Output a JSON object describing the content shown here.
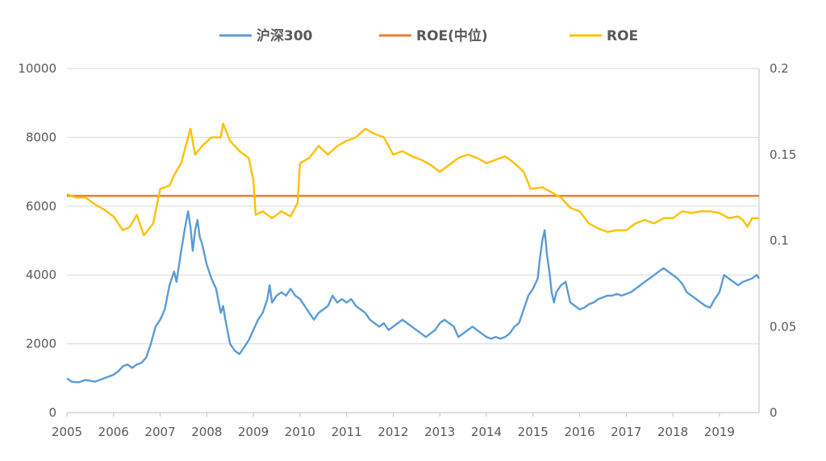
{
  "chart_data": {
    "type": "line",
    "legend": {
      "placement": "top-center",
      "entries": [
        {
          "name": "沪深300",
          "color": "#5B9BD5"
        },
        {
          "name": "ROE(中位)",
          "color": "#ED7D31"
        },
        {
          "name": "ROE",
          "color": "#FFC000"
        }
      ]
    },
    "x_axis": {
      "ticks": [
        "2005",
        "2006",
        "2007",
        "2008",
        "2009",
        "2010",
        "2011",
        "2012",
        "2013",
        "2014",
        "2015",
        "2016",
        "2017",
        "2018",
        "2019"
      ],
      "range": [
        2005,
        2019.85
      ]
    },
    "y_left": {
      "ticks": [
        "0",
        "2000",
        "4000",
        "6000",
        "8000",
        "10000"
      ],
      "range": [
        0,
        10000
      ]
    },
    "y_right": {
      "ticks": [
        "0",
        "0.05",
        "0.1",
        "0.15",
        "0.2"
      ],
      "range": [
        0,
        0.2
      ]
    },
    "grid": true,
    "series": [
      {
        "name": "沪深300",
        "axis": "left",
        "color": "#5B9BD5",
        "points": [
          [
            2005.0,
            1000
          ],
          [
            2005.1,
            900
          ],
          [
            2005.25,
            880
          ],
          [
            2005.4,
            950
          ],
          [
            2005.6,
            900
          ],
          [
            2005.8,
            1000
          ],
          [
            2006.0,
            1100
          ],
          [
            2006.1,
            1200
          ],
          [
            2006.2,
            1350
          ],
          [
            2006.3,
            1400
          ],
          [
            2006.4,
            1300
          ],
          [
            2006.5,
            1400
          ],
          [
            2006.6,
            1450
          ],
          [
            2006.7,
            1600
          ],
          [
            2006.8,
            2000
          ],
          [
            2006.9,
            2500
          ],
          [
            2007.0,
            2700
          ],
          [
            2007.1,
            3000
          ],
          [
            2007.2,
            3700
          ],
          [
            2007.3,
            4100
          ],
          [
            2007.35,
            3800
          ],
          [
            2007.45,
            4700
          ],
          [
            2007.55,
            5500
          ],
          [
            2007.6,
            5850
          ],
          [
            2007.65,
            5400
          ],
          [
            2007.7,
            4700
          ],
          [
            2007.75,
            5300
          ],
          [
            2007.8,
            5600
          ],
          [
            2007.85,
            5100
          ],
          [
            2007.9,
            4900
          ],
          [
            2008.0,
            4300
          ],
          [
            2008.1,
            3900
          ],
          [
            2008.2,
            3600
          ],
          [
            2008.3,
            2900
          ],
          [
            2008.35,
            3100
          ],
          [
            2008.4,
            2700
          ],
          [
            2008.5,
            2000
          ],
          [
            2008.6,
            1800
          ],
          [
            2008.7,
            1700
          ],
          [
            2008.8,
            1900
          ],
          [
            2008.9,
            2100
          ],
          [
            2009.0,
            2400
          ],
          [
            2009.1,
            2700
          ],
          [
            2009.2,
            2900
          ],
          [
            2009.3,
            3300
          ],
          [
            2009.35,
            3700
          ],
          [
            2009.4,
            3200
          ],
          [
            2009.5,
            3400
          ],
          [
            2009.6,
            3500
          ],
          [
            2009.7,
            3400
          ],
          [
            2009.8,
            3600
          ],
          [
            2009.9,
            3400
          ],
          [
            2010.0,
            3300
          ],
          [
            2010.1,
            3100
          ],
          [
            2010.2,
            2900
          ],
          [
            2010.3,
            2700
          ],
          [
            2010.4,
            2900
          ],
          [
            2010.5,
            3000
          ],
          [
            2010.6,
            3100
          ],
          [
            2010.7,
            3400
          ],
          [
            2010.8,
            3200
          ],
          [
            2010.9,
            3300
          ],
          [
            2011.0,
            3200
          ],
          [
            2011.1,
            3300
          ],
          [
            2011.2,
            3100
          ],
          [
            2011.3,
            3000
          ],
          [
            2011.4,
            2900
          ],
          [
            2011.5,
            2700
          ],
          [
            2011.6,
            2600
          ],
          [
            2011.7,
            2500
          ],
          [
            2011.8,
            2600
          ],
          [
            2011.9,
            2400
          ],
          [
            2012.0,
            2500
          ],
          [
            2012.1,
            2600
          ],
          [
            2012.2,
            2700
          ],
          [
            2012.3,
            2600
          ],
          [
            2012.4,
            2500
          ],
          [
            2012.5,
            2400
          ],
          [
            2012.6,
            2300
          ],
          [
            2012.7,
            2200
          ],
          [
            2012.8,
            2300
          ],
          [
            2012.9,
            2400
          ],
          [
            2013.0,
            2600
          ],
          [
            2013.1,
            2700
          ],
          [
            2013.2,
            2600
          ],
          [
            2013.3,
            2500
          ],
          [
            2013.4,
            2200
          ],
          [
            2013.5,
            2300
          ],
          [
            2013.6,
            2400
          ],
          [
            2013.7,
            2500
          ],
          [
            2013.8,
            2400
          ],
          [
            2013.9,
            2300
          ],
          [
            2014.0,
            2200
          ],
          [
            2014.1,
            2150
          ],
          [
            2014.2,
            2200
          ],
          [
            2014.3,
            2150
          ],
          [
            2014.4,
            2200
          ],
          [
            2014.5,
            2300
          ],
          [
            2014.6,
            2500
          ],
          [
            2014.7,
            2600
          ],
          [
            2014.8,
            3000
          ],
          [
            2014.9,
            3400
          ],
          [
            2015.0,
            3600
          ],
          [
            2015.1,
            3900
          ],
          [
            2015.15,
            4500
          ],
          [
            2015.2,
            5000
          ],
          [
            2015.25,
            5300
          ],
          [
            2015.3,
            4600
          ],
          [
            2015.35,
            4100
          ],
          [
            2015.4,
            3500
          ],
          [
            2015.45,
            3200
          ],
          [
            2015.5,
            3500
          ],
          [
            2015.6,
            3700
          ],
          [
            2015.7,
            3800
          ],
          [
            2015.8,
            3200
          ],
          [
            2015.9,
            3100
          ],
          [
            2016.0,
            3000
          ],
          [
            2016.1,
            3050
          ],
          [
            2016.2,
            3150
          ],
          [
            2016.3,
            3200
          ],
          [
            2016.4,
            3300
          ],
          [
            2016.5,
            3350
          ],
          [
            2016.6,
            3400
          ],
          [
            2016.7,
            3400
          ],
          [
            2016.8,
            3450
          ],
          [
            2016.9,
            3400
          ],
          [
            2017.0,
            3450
          ],
          [
            2017.1,
            3500
          ],
          [
            2017.2,
            3600
          ],
          [
            2017.3,
            3700
          ],
          [
            2017.4,
            3800
          ],
          [
            2017.5,
            3900
          ],
          [
            2017.6,
            4000
          ],
          [
            2017.7,
            4100
          ],
          [
            2017.8,
            4200
          ],
          [
            2017.9,
            4100
          ],
          [
            2018.0,
            4000
          ],
          [
            2018.1,
            3900
          ],
          [
            2018.2,
            3750
          ],
          [
            2018.3,
            3500
          ],
          [
            2018.4,
            3400
          ],
          [
            2018.5,
            3300
          ],
          [
            2018.6,
            3200
          ],
          [
            2018.7,
            3100
          ],
          [
            2018.8,
            3050
          ],
          [
            2018.9,
            3300
          ],
          [
            2019.0,
            3500
          ],
          [
            2019.1,
            4000
          ],
          [
            2019.2,
            3900
          ],
          [
            2019.3,
            3800
          ],
          [
            2019.4,
            3700
          ],
          [
            2019.5,
            3800
          ],
          [
            2019.6,
            3850
          ],
          [
            2019.7,
            3900
          ],
          [
            2019.8,
            4000
          ],
          [
            2019.85,
            3900
          ]
        ]
      },
      {
        "name": "ROE(中位)",
        "axis": "right",
        "color": "#ED7D31",
        "points": [
          [
            2005.0,
            0.126
          ],
          [
            2019.85,
            0.126
          ]
        ]
      },
      {
        "name": "ROE",
        "axis": "right",
        "color": "#FFC000",
        "points": [
          [
            2005.0,
            0.127
          ],
          [
            2005.2,
            0.125
          ],
          [
            2005.4,
            0.125
          ],
          [
            2005.6,
            0.121
          ],
          [
            2005.8,
            0.118
          ],
          [
            2006.0,
            0.114
          ],
          [
            2006.2,
            0.106
          ],
          [
            2006.35,
            0.108
          ],
          [
            2006.5,
            0.115
          ],
          [
            2006.65,
            0.103
          ],
          [
            2006.85,
            0.11
          ],
          [
            2007.0,
            0.13
          ],
          [
            2007.2,
            0.132
          ],
          [
            2007.3,
            0.138
          ],
          [
            2007.45,
            0.145
          ],
          [
            2007.55,
            0.155
          ],
          [
            2007.65,
            0.165
          ],
          [
            2007.75,
            0.15
          ],
          [
            2007.9,
            0.155
          ],
          [
            2008.1,
            0.16
          ],
          [
            2008.3,
            0.16
          ],
          [
            2008.35,
            0.168
          ],
          [
            2008.5,
            0.158
          ],
          [
            2008.7,
            0.152
          ],
          [
            2008.9,
            0.148
          ],
          [
            2009.0,
            0.135
          ],
          [
            2009.05,
            0.115
          ],
          [
            2009.2,
            0.117
          ],
          [
            2009.4,
            0.113
          ],
          [
            2009.6,
            0.117
          ],
          [
            2009.8,
            0.114
          ],
          [
            2009.95,
            0.122
          ],
          [
            2010.0,
            0.145
          ],
          [
            2010.2,
            0.148
          ],
          [
            2010.4,
            0.155
          ],
          [
            2010.6,
            0.15
          ],
          [
            2010.8,
            0.155
          ],
          [
            2011.0,
            0.158
          ],
          [
            2011.2,
            0.16
          ],
          [
            2011.4,
            0.165
          ],
          [
            2011.6,
            0.162
          ],
          [
            2011.8,
            0.16
          ],
          [
            2012.0,
            0.15
          ],
          [
            2012.2,
            0.152
          ],
          [
            2012.4,
            0.149
          ],
          [
            2012.6,
            0.147
          ],
          [
            2012.8,
            0.144
          ],
          [
            2013.0,
            0.14
          ],
          [
            2013.2,
            0.144
          ],
          [
            2013.4,
            0.148
          ],
          [
            2013.6,
            0.15
          ],
          [
            2013.8,
            0.148
          ],
          [
            2014.0,
            0.145
          ],
          [
            2014.2,
            0.147
          ],
          [
            2014.4,
            0.149
          ],
          [
            2014.6,
            0.145
          ],
          [
            2014.8,
            0.14
          ],
          [
            2014.95,
            0.13
          ],
          [
            2015.2,
            0.131
          ],
          [
            2015.4,
            0.128
          ],
          [
            2015.6,
            0.125
          ],
          [
            2015.8,
            0.119
          ],
          [
            2016.0,
            0.117
          ],
          [
            2016.2,
            0.11
          ],
          [
            2016.4,
            0.107
          ],
          [
            2016.6,
            0.105
          ],
          [
            2016.8,
            0.106
          ],
          [
            2017.0,
            0.106
          ],
          [
            2017.2,
            0.11
          ],
          [
            2017.4,
            0.112
          ],
          [
            2017.6,
            0.11
          ],
          [
            2017.8,
            0.113
          ],
          [
            2018.0,
            0.113
          ],
          [
            2018.2,
            0.117
          ],
          [
            2018.4,
            0.116
          ],
          [
            2018.6,
            0.117
          ],
          [
            2018.8,
            0.117
          ],
          [
            2019.0,
            0.116
          ],
          [
            2019.2,
            0.113
          ],
          [
            2019.4,
            0.114
          ],
          [
            2019.5,
            0.112
          ],
          [
            2019.6,
            0.108
          ],
          [
            2019.7,
            0.113
          ],
          [
            2019.85,
            0.113
          ]
        ]
      }
    ]
  }
}
